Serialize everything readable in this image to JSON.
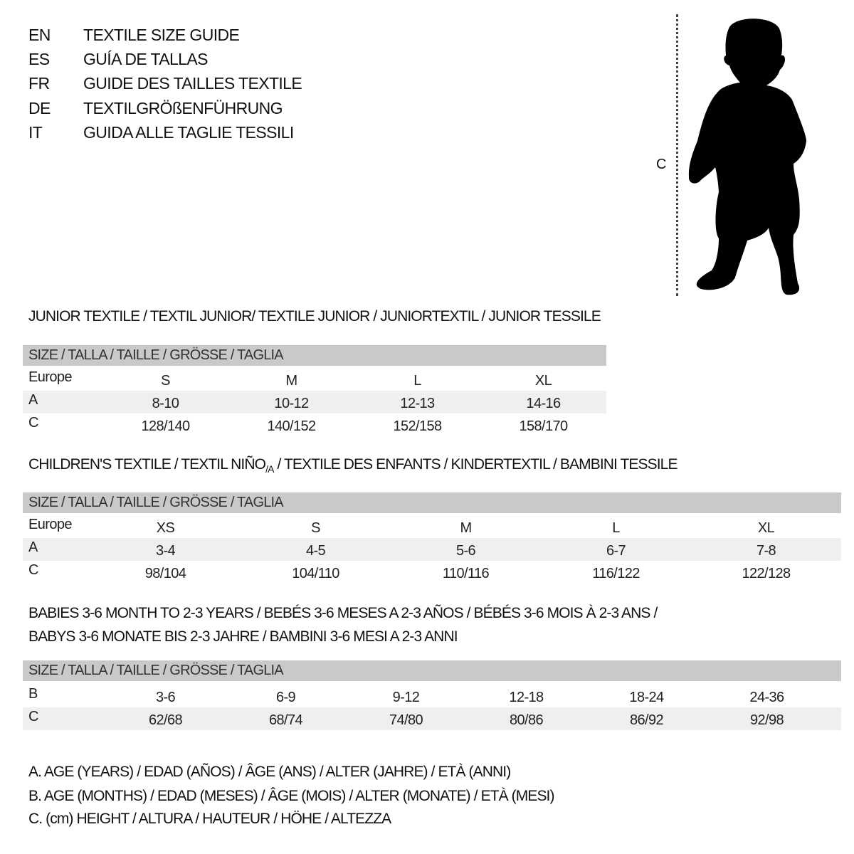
{
  "languages": [
    {
      "code": "EN",
      "title": "TEXTILE SIZE GUIDE"
    },
    {
      "code": "ES",
      "title": "GUÍA DE TALLAS"
    },
    {
      "code": "FR",
      "title": "GUIDE DES TAILLES TEXTILE"
    },
    {
      "code": "DE",
      "title": "TEXTILGRÖßENFÜHRUNG"
    },
    {
      "code": "IT",
      "title": "GUIDA ALLE TAGLIE TESSILI"
    }
  ],
  "figure": {
    "measure_label": "C"
  },
  "junior": {
    "title": "JUNIOR TEXTILE / TEXTIL JUNIOR/ TEXTILE JUNIOR / JUNIORTEXTIL / JUNIOR TESSILE",
    "header": "SIZE / TALLA / TAILLE / GRÖSSE / TAGLIA",
    "rows": [
      {
        "label": "Europe",
        "cells": [
          "S",
          "M",
          "L",
          "XL"
        ]
      },
      {
        "label": "A",
        "cells": [
          "8-10",
          "10-12",
          "12-13",
          "14-16"
        ]
      },
      {
        "label": "C",
        "cells": [
          "128/140",
          "140/152",
          "152/158",
          "158/170"
        ]
      }
    ]
  },
  "children": {
    "title_pre": "CHILDREN'S TEXTILE / TEXTIL NIÑO",
    "title_sub": "/A",
    "title_post": " / TEXTILE DES ENFANTS / KINDERTEXTIL / BAMBINI TESSILE",
    "header": "SIZE / TALLA / TAILLE / GRÖSSE / TAGLIA",
    "rows": [
      {
        "label": "Europe",
        "cells": [
          "XS",
          "S",
          "M",
          "L",
          "XL"
        ]
      },
      {
        "label": "A",
        "cells": [
          "3-4",
          "4-5",
          "5-6",
          "6-7",
          "7-8"
        ]
      },
      {
        "label": "C",
        "cells": [
          "98/104",
          "104/110",
          "110/116",
          "116/122",
          "122/128"
        ]
      }
    ]
  },
  "babies": {
    "title_line1": "BABIES 3-6 MONTH TO 2-3 YEARS / BEBÉS 3-6 MESES A 2-3 AÑOS / BÉBÉS 3-6 MOIS À 2-3 ANS /",
    "title_line2": "BABYS 3-6 MONATE BIS 2-3 JAHRE / BAMBINI 3-6 MESI A 2-3 ANNI",
    "header": "SIZE / TALLA / TAILLE / GRÖSSE / TAGLIA",
    "rows": [
      {
        "label": "B",
        "cells": [
          "3-6",
          "6-9",
          "9-12",
          "12-18",
          "18-24",
          "24-36"
        ]
      },
      {
        "label": "C",
        "cells": [
          "62/68",
          "68/74",
          "74/80",
          "80/86",
          "86/92",
          "92/98"
        ]
      }
    ]
  },
  "legend": [
    "A. AGE (YEARS) / EDAD (AÑOS) / ÂGE (ANS) / ALTER (JAHRE) / ETÀ (ANNI)",
    "B. AGE (MONTHS) / EDAD (MESES) / ÂGE (MOIS) / ALTER (MONATE) / ETÀ (MESI)",
    "C. (cm) HEIGHT / ALTURA / HAUTEUR / HÖHE / ALTEZZA"
  ],
  "colors": {
    "header_bg": "#c9c9c9",
    "alt_row_bg": "#efefef",
    "silhouette": "#000000"
  }
}
